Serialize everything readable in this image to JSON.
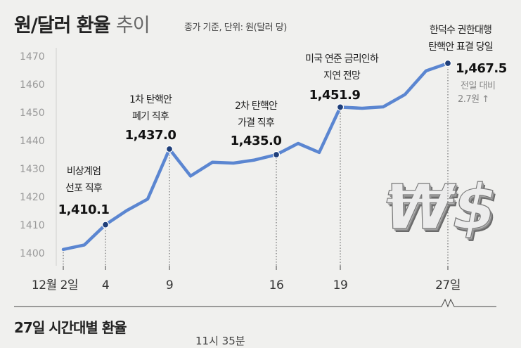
{
  "header": {
    "title_main": "원/달러 환율",
    "title_light": "추이",
    "subtitle": "종가 기준, 단위: 원(달러 당)"
  },
  "chart_data": {
    "type": "line",
    "title": "원/달러 환율 추이",
    "ylim": [
      1400,
      1470
    ],
    "yticks": [
      1400,
      1410,
      1420,
      1430,
      1440,
      1450,
      1460,
      1470
    ],
    "x": [
      2,
      3,
      4,
      5,
      6,
      9,
      10,
      11,
      12,
      13,
      16,
      17,
      18,
      19,
      20,
      23,
      24,
      26,
      27
    ],
    "values": [
      1401.3,
      1402.9,
      1410.1,
      1415.1,
      1419.2,
      1437.0,
      1427.4,
      1432.3,
      1432.0,
      1433.1,
      1435.0,
      1439.0,
      1435.8,
      1451.9,
      1451.5,
      1452.0,
      1456.4,
      1464.8,
      1467.5
    ],
    "color": "#5b86d1",
    "xtick_labels": [
      {
        "x": 2,
        "label": "12월 2일"
      },
      {
        "x": 4,
        "label": "4"
      },
      {
        "x": 9,
        "label": "9"
      },
      {
        "x": 16,
        "label": "16"
      },
      {
        "x": 19,
        "label": "19"
      },
      {
        "x": 27,
        "label": "27일"
      }
    ],
    "annotations": [
      {
        "x": 4,
        "value_label": "1,410.1",
        "lines": [
          "비상계엄",
          "선포 직후"
        ]
      },
      {
        "x": 9,
        "value_label": "1,437.0",
        "lines": [
          "1차 탄핵안",
          "폐기 직후"
        ]
      },
      {
        "x": 16,
        "value_label": "1,435.0",
        "lines": [
          "2차 탄핵안",
          "가결 직후"
        ]
      },
      {
        "x": 19,
        "value_label": "1,451.9",
        "lines": [
          "미국 연준 금리인하",
          "지연 전망"
        ]
      },
      {
        "x": 27,
        "value_label": "1,467.5",
        "lines": [
          "한덕수 권한대행",
          "탄핵안 표결 당일"
        ]
      }
    ],
    "note_lines": [
      "전일 대비",
      "2.7원 ↑"
    ],
    "grid": false
  },
  "section": {
    "title": "27일 시간대별 환율",
    "cut_text": "11시 35분"
  },
  "decor": {
    "currency_icon": "won-dollar-3d-icon",
    "currency_glyphs": "₩$"
  }
}
